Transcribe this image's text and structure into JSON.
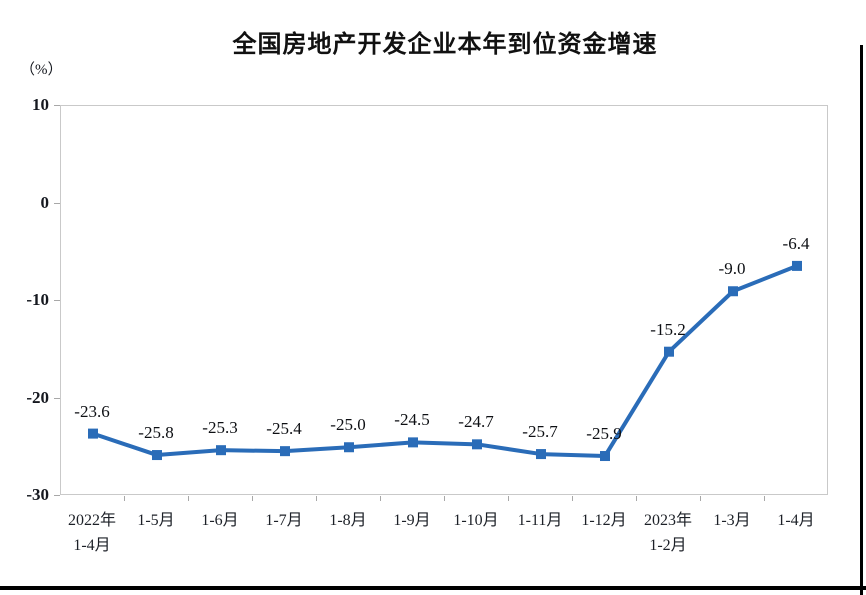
{
  "page": {
    "title": "全国房地产开发企业本年到位资金增速",
    "y_unit_label": "（%）"
  },
  "colors": {
    "line": "#2a6cb8",
    "marker": "#2a6cb8",
    "plot_border": "#c9c9c9",
    "tick": "#a8a8a8",
    "text": "#15181f",
    "frame": "#000000",
    "background": "#ffffff"
  },
  "chart_data": {
    "type": "line",
    "title": "全国房地产开发企业本年到位资金增速",
    "ylabel": "（%）",
    "xlabel": "",
    "ylim": [
      -30,
      10
    ],
    "y_ticks": [
      10,
      0,
      -10,
      -20,
      -30
    ],
    "grid": false,
    "legend": "none",
    "marker": "square",
    "categories": [
      "2022年 1-4月",
      "1-5月",
      "1-6月",
      "1-7月",
      "1-8月",
      "1-9月",
      "1-10月",
      "1-11月",
      "1-12月",
      "2023年 1-2月",
      "1-3月",
      "1-4月"
    ],
    "category_lines": [
      [
        "2022年",
        "1-4月"
      ],
      [
        "1-5月"
      ],
      [
        "1-6月"
      ],
      [
        "1-7月"
      ],
      [
        "1-8月"
      ],
      [
        "1-9月"
      ],
      [
        "1-10月"
      ],
      [
        "1-11月"
      ],
      [
        "1-12月"
      ],
      [
        "2023年",
        "1-2月"
      ],
      [
        "1-3月"
      ],
      [
        "1-4月"
      ]
    ],
    "values": [
      -23.6,
      -25.8,
      -25.3,
      -25.4,
      -25.0,
      -24.5,
      -24.7,
      -25.7,
      -25.9,
      -15.2,
      -9.0,
      -6.4
    ],
    "point_labels": [
      "-23.6",
      "-25.8",
      "-25.3",
      "-25.4",
      "-25.0",
      "-24.5",
      "-24.7",
      "-25.7",
      "-25.9",
      "-15.2",
      "-9.0",
      "-6.4"
    ]
  }
}
